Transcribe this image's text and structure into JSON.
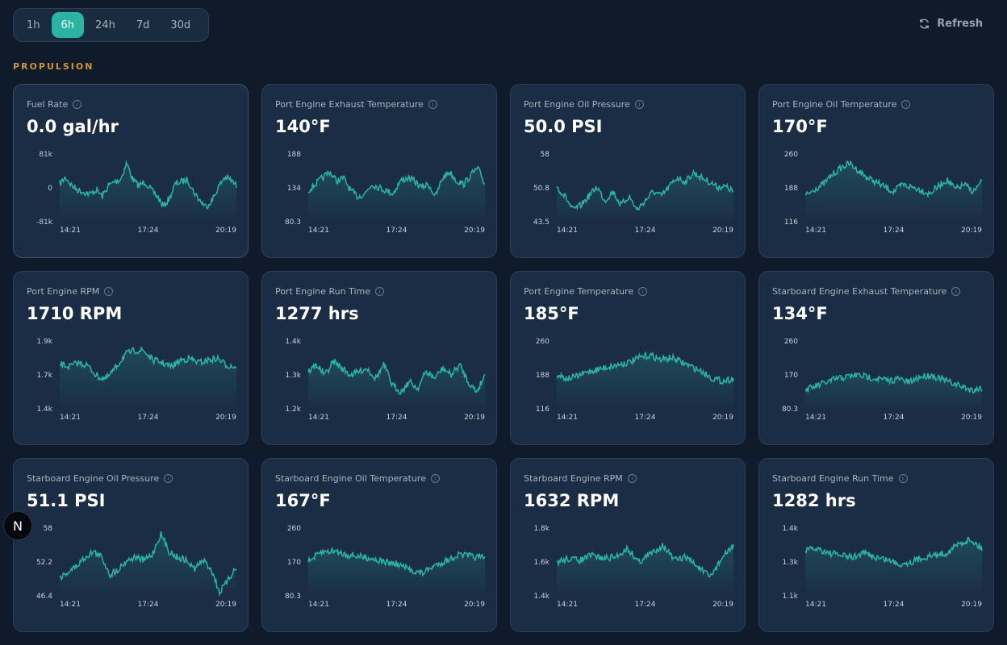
{
  "time_ranges": [
    "1h",
    "6h",
    "24h",
    "7d",
    "30d"
  ],
  "active_range": "6h",
  "refresh_label": "Refresh",
  "section_title": "PROPULSION",
  "accent": "#2bb3a3",
  "x_ticks": [
    "14:21",
    "17:24",
    "20:19"
  ],
  "cards": [
    {
      "title": "Fuel Rate",
      "value": "0.0 gal/hr",
      "y_ticks": [
        "81k",
        "0",
        "-81k"
      ],
      "ylim": [
        -81000,
        81000
      ],
      "series": [
        10000,
        25000,
        5000,
        -5000,
        -10000,
        -15000,
        -5000,
        -20000,
        5000,
        15000,
        20000,
        60000,
        20000,
        5000,
        15000,
        -5000,
        -20000,
        -45000,
        -25000,
        10000,
        15000,
        20000,
        -10000,
        -30000,
        -45000,
        -30000,
        0,
        25000,
        20000,
        5000
      ]
    },
    {
      "title": "Port Engine Exhaust Temperature",
      "value": "140°F",
      "y_ticks": [
        "188",
        "134",
        "80.3"
      ],
      "ylim": [
        80.3,
        188
      ],
      "series": [
        130,
        140,
        150,
        160,
        145,
        150,
        130,
        120,
        125,
        140,
        135,
        130,
        125,
        145,
        150,
        145,
        135,
        140,
        120,
        150,
        160,
        145,
        140,
        155,
        165,
        140
      ]
    },
    {
      "title": "Port Engine Oil Pressure",
      "value": "50.0 PSI",
      "y_ticks": [
        "58",
        "50.8",
        "43.5"
      ],
      "ylim": [
        43.5,
        58
      ],
      "series": [
        51,
        49,
        46,
        47,
        49,
        51,
        48,
        50,
        47,
        49,
        46,
        48,
        50,
        49,
        51,
        53,
        52,
        54,
        53,
        52,
        51,
        51,
        50
      ]
    },
    {
      "title": "Port Engine Oil Temperature",
      "value": "170°F",
      "y_ticks": [
        "260",
        "188",
        "116"
      ],
      "ylim": [
        116,
        260
      ],
      "series": [
        170,
        185,
        195,
        215,
        230,
        240,
        225,
        210,
        200,
        190,
        180,
        195,
        190,
        185,
        175,
        190,
        205,
        185,
        195,
        180,
        200
      ]
    },
    {
      "title": "Port Engine RPM",
      "value": "1710 RPM",
      "y_ticks": [
        "1.9k",
        "1.7k",
        "1.4k"
      ],
      "ylim": [
        1400,
        1900
      ],
      "series": [
        1730,
        1710,
        1740,
        1720,
        1640,
        1620,
        1700,
        1800,
        1830,
        1830,
        1760,
        1740,
        1710,
        1760,
        1770,
        1740,
        1760,
        1770,
        1720,
        1710
      ]
    },
    {
      "title": "Port Engine Run Time",
      "value": "1277 hrs",
      "y_ticks": [
        "1.4k",
        "1.3k",
        "1.2k"
      ],
      "ylim": [
        1200,
        1400
      ],
      "series": [
        1310,
        1330,
        1300,
        1340,
        1320,
        1300,
        1310,
        1320,
        1290,
        1330,
        1270,
        1250,
        1280,
        1260,
        1310,
        1290,
        1320,
        1300,
        1330,
        1280,
        1250,
        1300
      ]
    },
    {
      "title": "Port Engine Temperature",
      "value": "185°F",
      "y_ticks": [
        "260",
        "188",
        "116"
      ],
      "ylim": [
        116,
        260
      ],
      "series": [
        190,
        180,
        185,
        195,
        200,
        205,
        210,
        215,
        225,
        230,
        220,
        225,
        215,
        205,
        195,
        180,
        175,
        180
      ]
    },
    {
      "title": "Starboard Engine Exhaust Temperature",
      "value": "134°F",
      "y_ticks": [
        "260",
        "170",
        "80.3"
      ],
      "ylim": [
        80.3,
        260
      ],
      "series": [
        130,
        140,
        150,
        160,
        165,
        170,
        165,
        160,
        155,
        160,
        150,
        165,
        170,
        160,
        150,
        140,
        130,
        135
      ]
    },
    {
      "title": "Starboard Engine Oil Pressure",
      "value": "51.1 PSI",
      "y_ticks": [
        "58",
        "52.2",
        "46.4"
      ],
      "ylim": [
        46.4,
        58
      ],
      "series": [
        49.5,
        50.5,
        51.5,
        53,
        54,
        53,
        50,
        51,
        52.5,
        53,
        52.5,
        53.5,
        57,
        54,
        53,
        52.5,
        51,
        52.5,
        51,
        47,
        49,
        51.5
      ]
    },
    {
      "title": "Starboard Engine Oil Temperature",
      "value": "167°F",
      "y_ticks": [
        "260",
        "170",
        "80.3"
      ],
      "ylim": [
        80.3,
        260
      ],
      "series": [
        170,
        195,
        200,
        190,
        185,
        180,
        170,
        165,
        150,
        140,
        160,
        175,
        190,
        185,
        180
      ]
    },
    {
      "title": "Starboard Engine RPM",
      "value": "1632 RPM",
      "y_ticks": [
        "1.8k",
        "1.6k",
        "1.4k"
      ],
      "ylim": [
        1400,
        1800
      ],
      "series": [
        1600,
        1620,
        1610,
        1640,
        1620,
        1630,
        1680,
        1600,
        1650,
        1700,
        1610,
        1630,
        1570,
        1510,
        1620,
        1700
      ]
    },
    {
      "title": "Starboard Engine Run Time",
      "value": "1282 hrs",
      "y_ticks": [
        "1.4k",
        "1.3k",
        "1.1k"
      ],
      "ylim": [
        1100,
        1400
      ],
      "series": [
        1300,
        1310,
        1290,
        1280,
        1270,
        1290,
        1270,
        1260,
        1240,
        1250,
        1270,
        1280,
        1290,
        1330,
        1350,
        1310
      ]
    }
  ],
  "dev_badge": "N"
}
